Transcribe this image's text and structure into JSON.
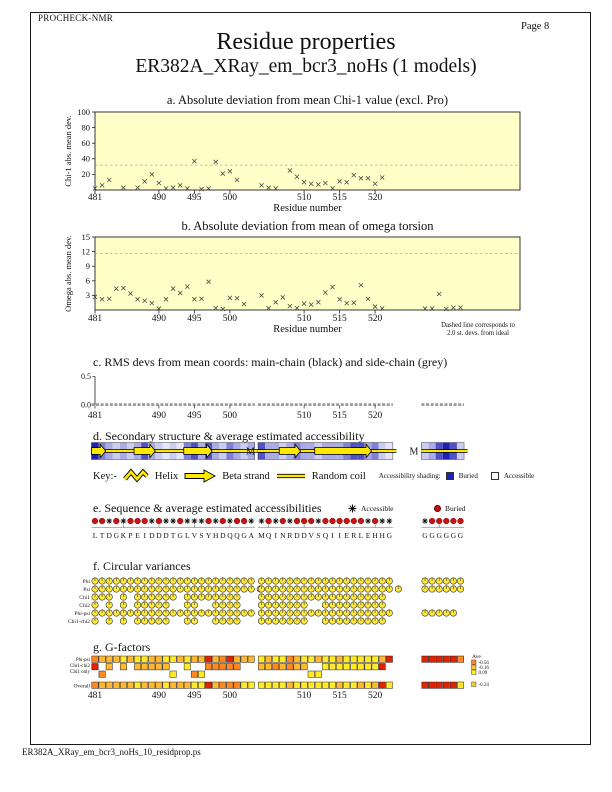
{
  "page": {
    "app_name": "PROCHECK-NMR",
    "page_number": "Page 8",
    "title": "Residue properties",
    "subtitle": "ER382A_XRay_em_bcr3_noHs (1 models)",
    "footer_filename": "ER382A_XRay_em_bcr3_noHs_10_residprop.ps"
  },
  "colors": {
    "plot_bg": "#FFFFC8",
    "marker": "#444444",
    "dashed": "#999999",
    "buried_red": "#CC1111",
    "strand_yellow": "#FFE800",
    "circle_yellow": "#FFE93A",
    "blue_scale": [
      "#FFFFFF",
      "#E6E6F8",
      "#CCCCF0",
      "#AAAAE6",
      "#8080DA",
      "#5050C8",
      "#2020B4"
    ],
    "gf_scale": [
      "#FFE928",
      "#FFB830",
      "#FF8820",
      "#E32000"
    ]
  },
  "axis": {
    "xlabel": "Residue number",
    "xticks": [
      481,
      490,
      495,
      500,
      510,
      515,
      520
    ]
  },
  "blocks": {
    "start_residues": [
      481,
      504,
      523
    ],
    "sequences": [
      "LTDGKPEIDDDTGLVSYHDQQGA",
      "MQINRDDVSQIIERLEHHG",
      "GGGGGG"
    ]
  },
  "chart_data": [
    {
      "id": "a",
      "type": "scatter",
      "title": "a. Absolute deviation from mean Chi-1 value (excl. Pro)",
      "ylabel": "Chi-1 abs. mean dev.",
      "xlabel": "Residue number",
      "ylim": [
        0,
        100
      ],
      "yticks": [
        20,
        40,
        60,
        80,
        100
      ],
      "dashed_line_y": 32,
      "points": [
        [
          481,
          2
        ],
        [
          482,
          6
        ],
        [
          483,
          13
        ],
        [
          485,
          3
        ],
        [
          487,
          3
        ],
        [
          488,
          11
        ],
        [
          489,
          20
        ],
        [
          490,
          9
        ],
        [
          491,
          2
        ],
        [
          492,
          3
        ],
        [
          493,
          6
        ],
        [
          494,
          2
        ],
        [
          495,
          37
        ],
        [
          496,
          1
        ],
        [
          497,
          2
        ],
        [
          498,
          36
        ],
        [
          499,
          21
        ],
        [
          500,
          24
        ],
        [
          501,
          13
        ],
        [
          504,
          6
        ],
        [
          505,
          3
        ],
        [
          506,
          2
        ],
        [
          508,
          25
        ],
        [
          509,
          17
        ],
        [
          510,
          10
        ],
        [
          511,
          8
        ],
        [
          512,
          7
        ],
        [
          513,
          9
        ],
        [
          514,
          2
        ],
        [
          515,
          11
        ],
        [
          516,
          10
        ],
        [
          517,
          19
        ],
        [
          518,
          15
        ],
        [
          519,
          15
        ],
        [
          520,
          8
        ],
        [
          521,
          16
        ]
      ]
    },
    {
      "id": "b",
      "type": "scatter",
      "title": "b. Absolute deviation from mean of omega torsion",
      "ylabel": "Omega abs. mean dev.",
      "xlabel": "Residue number",
      "ylim": [
        0,
        15
      ],
      "yticks": [
        3,
        6,
        9,
        12,
        15
      ],
      "dashed_line_y": 11.6,
      "note": [
        "Dashed line corresponds to",
        "2.0 st. devs. from ideal"
      ],
      "points": [
        [
          481,
          2.7
        ],
        [
          482,
          2.2
        ],
        [
          483,
          2.3
        ],
        [
          484,
          4.4
        ],
        [
          485,
          4.5
        ],
        [
          486,
          3.4
        ],
        [
          487,
          2.2
        ],
        [
          488,
          1.9
        ],
        [
          489,
          1.4
        ],
        [
          490,
          0.3
        ],
        [
          491,
          2.2
        ],
        [
          492,
          4.4
        ],
        [
          493,
          3.5
        ],
        [
          494,
          4.8
        ],
        [
          495,
          2.2
        ],
        [
          496,
          2.3
        ],
        [
          497,
          5.8
        ],
        [
          498,
          0.4
        ],
        [
          499,
          0.2
        ],
        [
          500,
          2.5
        ],
        [
          501,
          2.4
        ],
        [
          502,
          1.2
        ],
        [
          504,
          3.0
        ],
        [
          505,
          0.4
        ],
        [
          506,
          1.6
        ],
        [
          507,
          2.6
        ],
        [
          508,
          0.8
        ],
        [
          509,
          0.4
        ],
        [
          510,
          1.3
        ],
        [
          511,
          1.1
        ],
        [
          512,
          1.6
        ],
        [
          513,
          3.6
        ],
        [
          514,
          4.7
        ],
        [
          515,
          2.2
        ],
        [
          516,
          1.4
        ],
        [
          517,
          1.5
        ],
        [
          518,
          5.1
        ],
        [
          519,
          2.3
        ],
        [
          520,
          0.7
        ],
        [
          521,
          0.3
        ],
        [
          523,
          0.3
        ],
        [
          524,
          0.3
        ],
        [
          525,
          3.3
        ],
        [
          526,
          0.2
        ],
        [
          527,
          0.5
        ],
        [
          528,
          0.5
        ]
      ]
    },
    {
      "id": "c",
      "type": "line",
      "title": "c. RMS devs from mean coords: main-chain (black) and side-chain (grey)",
      "ytick_labels": [
        "0.5",
        "0.0"
      ],
      "ylim": [
        0,
        0.5
      ],
      "series": [
        {
          "name": "main-chain",
          "color": "#333333",
          "value": 0
        },
        {
          "name": "side-chain",
          "color": "#9A9A9A",
          "value": 0
        }
      ]
    }
  ],
  "section_d": {
    "title": "d. Secondary structure & average estimated accessibility",
    "chain_marker": "M",
    "key": {
      "prefix": "Key:-",
      "helix": "Helix",
      "strand": "Beta strand",
      "coil": "Random coil",
      "shading": "Accessibility shading:",
      "buried": "Buried",
      "accessible": "Accessible"
    },
    "strand_ranges": [
      [
        [
          1,
          2
        ],
        [
          7,
          9
        ],
        [
          14,
          17
        ]
      ],
      [
        [
          4,
          6
        ],
        [
          9,
          16
        ]
      ],
      []
    ],
    "accessibility_levels": [
      [
        6,
        4,
        3,
        2,
        3,
        2,
        3,
        5,
        3,
        2,
        1,
        2,
        1,
        4,
        5,
        3,
        5,
        3,
        2,
        4,
        3,
        2,
        3
      ],
      [
        5,
        3,
        3,
        2,
        3,
        4,
        3,
        3,
        2,
        3,
        3,
        3,
        4,
        5,
        5,
        3,
        4,
        2,
        1
      ],
      [
        2,
        3,
        5,
        6,
        5,
        2
      ]
    ]
  },
  "section_e": {
    "title": "e. Sequence & average estimated accessibilities",
    "legend_accessible": "Accessible",
    "legend_buried": "Buried",
    "burial_pattern": [
      "BBABABBBABAABAAABABABBA",
      "ABABABBBABBBBBBABAA",
      "ABBBBB"
    ]
  },
  "section_f": {
    "title": "f. Circular variances",
    "rows": [
      {
        "label": "Phi",
        "pattern": [
          "11111111111111111111111",
          "1111111111111111111",
          "111111"
        ],
        "extras": [
          0,
          0,
          0
        ]
      },
      {
        "label": "Psi",
        "pattern": [
          "11111111111111111111111",
          "1111111111111111111",
          "111111"
        ],
        "extras": [
          1,
          1,
          0
        ]
      },
      {
        "label": "Chi1",
        "pattern": [
          "11101011111101111111100",
          "1111111111111111110",
          "000000"
        ],
        "extras": [
          0,
          0,
          0
        ]
      },
      {
        "label": "Chi2",
        "pattern": [
          "10101011111001100111100",
          "1111111001111111110",
          "000000"
        ],
        "extras": [
          0,
          0,
          0
        ]
      },
      {
        "label": "Phi-psi",
        "pattern": [
          "11111111111111111111111",
          "1111111111111111111",
          "111110"
        ],
        "extras": [
          0,
          0,
          0
        ]
      },
      {
        "label": "Chi1-chi2",
        "pattern": [
          "10101011111001100111100",
          "1111111001111111110",
          "000000"
        ],
        "extras": [
          0,
          0,
          0
        ]
      }
    ]
  },
  "section_g": {
    "title": "g. G-factors",
    "rows": [
      {
        "label": "Phi-psi",
        "cells": [
          [
            2,
            1,
            1,
            1,
            0,
            1,
            0,
            0,
            1,
            1,
            0,
            0,
            1,
            0,
            1,
            1,
            3,
            1,
            2,
            3,
            1,
            1,
            1
          ],
          [
            0,
            1,
            0,
            0,
            2,
            1,
            0,
            0,
            1,
            0,
            0,
            1,
            0,
            0,
            0,
            0,
            0,
            1,
            3
          ],
          [
            3,
            3,
            3,
            3,
            3,
            2
          ]
        ]
      },
      {
        "label": "Chi1-chi2",
        "cells": [
          [
            3,
            -1,
            1,
            -1,
            1,
            -1,
            1,
            1,
            1,
            1,
            1,
            -1,
            -1,
            0,
            -1,
            -1,
            2,
            2,
            2,
            2,
            2,
            -1,
            -1
          ],
          [
            1,
            1,
            2,
            1,
            2,
            1,
            1,
            -1,
            -1,
            0,
            0,
            0,
            0,
            0,
            0,
            0,
            0,
            3,
            -1
          ],
          [
            -1,
            -1,
            -1,
            -1,
            -1,
            -1
          ]
        ]
      },
      {
        "label": "Chi1 only",
        "cells": [
          [
            -1,
            2,
            -1,
            -1,
            -1,
            -1,
            -1,
            -1,
            -1,
            -1,
            -1,
            0,
            -1,
            -1,
            2,
            0,
            -1,
            -1,
            -1,
            -1,
            -1,
            -1,
            -1
          ],
          [
            -1,
            -1,
            -1,
            -1,
            -1,
            -1,
            -1,
            0,
            0,
            -1,
            -1,
            -1,
            -1,
            -1,
            -1,
            -1,
            -1,
            -1,
            -1
          ],
          [
            -1,
            -1,
            -1,
            -1,
            -1,
            -1
          ]
        ]
      },
      {
        "label": "Overall",
        "cells": [
          [
            2,
            1,
            1,
            1,
            1,
            1,
            0,
            1,
            1,
            1,
            0,
            1,
            1,
            1,
            0,
            0,
            3,
            1,
            2,
            2,
            2,
            0,
            0
          ],
          [
            0,
            0,
            0,
            0,
            1,
            0,
            0,
            0,
            0,
            0,
            0,
            1,
            0,
            0,
            1,
            0,
            1,
            3,
            0
          ],
          [
            3,
            3,
            3,
            3,
            3,
            0
          ]
        ]
      }
    ],
    "legend": {
      "header": "Ave",
      "items": [
        {
          "value": "-0.56",
          "color": "#FF8820"
        },
        {
          "value": "-0.16",
          "color": "#FFC830"
        },
        {
          "value": "0.09",
          "color": "#FFE928"
        }
      ],
      "overall": {
        "value": "-0.34",
        "color": "#FFC830"
      }
    }
  }
}
